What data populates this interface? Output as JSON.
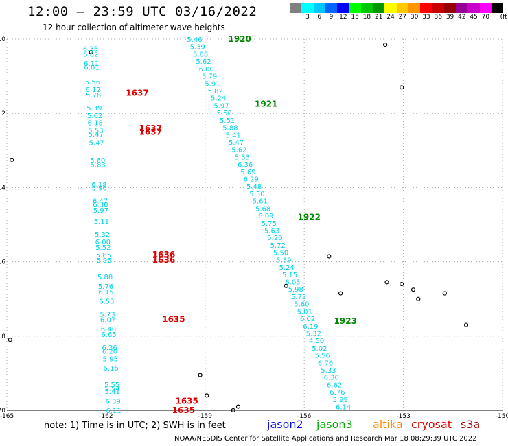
{
  "header": {
    "title": "12:00 – 23:59 UTC 03/16/2022",
    "subtitle": "12 hour collection of altimeter wave heights"
  },
  "colorbar": {
    "unit": "(ft)",
    "swatches": [
      {
        "color": "#808080",
        "label": ""
      },
      {
        "color": "#00ffff",
        "label": "3"
      },
      {
        "color": "#00c8ff",
        "label": "6"
      },
      {
        "color": "#0064ff",
        "label": "9"
      },
      {
        "color": "#0000ff",
        "label": "12"
      },
      {
        "color": "#00ff00",
        "label": "15"
      },
      {
        "color": "#00c800",
        "label": "18"
      },
      {
        "color": "#009600",
        "label": "21"
      },
      {
        "color": "#ffff00",
        "label": "24"
      },
      {
        "color": "#ffc800",
        "label": "27"
      },
      {
        "color": "#ff9600",
        "label": "30"
      },
      {
        "color": "#ff0000",
        "label": "33"
      },
      {
        "color": "#c80000",
        "label": "36"
      },
      {
        "color": "#960000",
        "label": "39"
      },
      {
        "color": "#960096",
        "label": "42"
      },
      {
        "color": "#c800c8",
        "label": "45"
      },
      {
        "color": "#ff00ff",
        "label": "70"
      },
      {
        "color": "#000000",
        "label": ""
      }
    ]
  },
  "map": {
    "lon_range": [
      -165,
      -150
    ],
    "lat_range": [
      -20,
      -10
    ],
    "lon_ticks": [
      "-165",
      "-162",
      "-159",
      "-156",
      "-153",
      "-150"
    ],
    "lat_ticks": [
      "-10",
      "-12",
      "-14",
      "-16",
      "-18",
      "-20"
    ],
    "grid": true,
    "colors": {
      "cyan": "#00d2e6",
      "red": "#dd0000",
      "green": "#008800",
      "grid": "#aaaaaa"
    },
    "tracks": [
      {
        "name": "west-track",
        "lon_start": -162.7,
        "lon_end": -162.0,
        "values": [
          "6.35",
          "5.62",
          "6.11",
          "6.01",
          "5.56",
          "6.12",
          "5.78",
          "5.39",
          "5.62",
          "6.18",
          "5.53",
          "5.47",
          "5.47",
          "5.60",
          "5.83",
          "6.18",
          "5.96",
          "6.47",
          "6.30",
          "5.97",
          "5.11",
          "5.32",
          "6.00",
          "5.52",
          "5.85",
          "5.95",
          "5.88",
          "5.76",
          "6.15",
          "6.53",
          "5.73",
          "6.07",
          "6.40",
          "6.65",
          "6.36",
          "6.20",
          "5.95",
          "6.16",
          "5.55",
          "5.54",
          "5.41",
          "6.39",
          "6.11"
        ],
        "lats": [
          -10.25,
          -10.4,
          -10.65,
          -10.75,
          -11.15,
          -11.35,
          -11.5,
          -11.85,
          -12.05,
          -12.25,
          -12.45,
          -12.55,
          -12.78,
          -13.25,
          -13.37,
          -13.9,
          -14.0,
          -14.35,
          -14.45,
          -14.6,
          -14.9,
          -15.25,
          -15.45,
          -15.6,
          -15.8,
          -15.95,
          -16.4,
          -16.65,
          -16.8,
          -17.05,
          -17.4,
          -17.55,
          -17.8,
          -17.95,
          -18.3,
          -18.4,
          -18.6,
          -18.85,
          -19.3,
          -19.4,
          -19.48,
          -19.75,
          -20.0
        ],
        "labels": [
          {
            "text": "1637",
            "lon": -161.4,
            "lat": -11.45
          },
          {
            "text": "1637",
            "lon": -161.0,
            "lat": -12.4
          },
          {
            "text": "1637",
            "lon": -161.0,
            "lat": -12.5
          },
          {
            "text": "1636",
            "lon": -160.6,
            "lat": -15.8
          },
          {
            "text": "1636",
            "lon": -160.6,
            "lat": -15.95
          },
          {
            "text": "1635",
            "lon": -160.3,
            "lat": -17.55
          },
          {
            "text": "1635",
            "lon": -159.9,
            "lat": -19.75
          },
          {
            "text": "1635",
            "lon": -160.0,
            "lat": -20.0
          }
        ]
      },
      {
        "name": "east-track",
        "lon_start": -159.55,
        "lon_end": -155.05,
        "values": [
          "5.46",
          "5.39",
          "5.68",
          "5.62",
          "6.00",
          "5.79",
          "5.91",
          "5.82",
          "5.24",
          "5.97",
          "5.50",
          "5.51",
          "5.88",
          "5.41",
          "5.47",
          "5.62",
          "5.33",
          "6.36",
          "5.69",
          "6.29",
          "5.48",
          "5.50",
          "5.61",
          "5.68",
          "6.09",
          "5.75",
          "5.63",
          "5.20",
          "5.72",
          "5.50",
          "5.39",
          "5.24",
          "5.15",
          "6.05",
          "5.98",
          "5.73",
          "5.60",
          "5.01",
          "6.02",
          "6.19",
          "5.32",
          "4.50",
          "5.02",
          "5.56",
          "6.76",
          "5.33",
          "6.30",
          "6.62",
          "6.76",
          "5.99",
          "6.14"
        ],
        "labels": [
          {
            "text": "1920",
            "lon": -158.3,
            "lat": -10.0
          },
          {
            "text": "1921",
            "lon": -157.5,
            "lat": -11.75
          },
          {
            "text": "1922",
            "lon": -156.2,
            "lat": -14.8
          },
          {
            "text": "1923",
            "lon": -155.1,
            "lat": -17.6
          }
        ]
      }
    ]
  },
  "note": "note: 1) Time is in UTC; 2) SWH is in feet",
  "satellites": [
    {
      "name": "jason2",
      "color": "#0000ee"
    },
    {
      "name": "jason3",
      "color": "#00aa00"
    },
    {
      "name": "altika",
      "color": "#ff8800"
    },
    {
      "name": "cryosat",
      "color": "#dd0000"
    },
    {
      "name": "s3a",
      "color": "#990000"
    }
  ],
  "footer": "NOAA/NESDIS Center for Satellite Applications and Research   Mar 18 08:29:39 UTC 2022"
}
